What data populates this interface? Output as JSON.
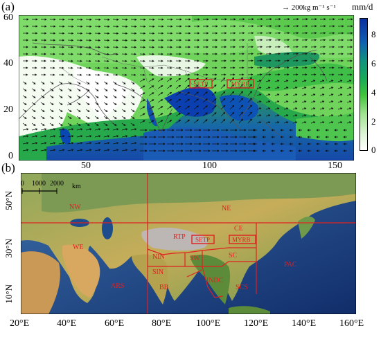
{
  "panel_a": {
    "label": "(a)",
    "vector_ref_label": "→ 200kg m⁻¹ s⁻¹",
    "unit_label": "mm/d",
    "y_ticks": [
      "60",
      "40",
      "20",
      "0"
    ],
    "x_ticks": [
      "50",
      "100",
      "150"
    ],
    "colorbar_ticks": [
      "8",
      "6",
      "4",
      "2",
      "0"
    ],
    "colorbar_colors": [
      "#ffffff",
      "#dff5d8",
      "#9fe28f",
      "#3fc43a",
      "#17a85a",
      "#11927f",
      "#0f5fb0",
      "#0a2fa0"
    ],
    "boxes": [
      "SETP",
      "MYRB"
    ],
    "vector_color": "#000000",
    "box_color": "#e02020"
  },
  "panel_b": {
    "label": "(b)",
    "scale_bar": {
      "labels": [
        "0",
        "1000",
        "2000"
      ],
      "unit": "km"
    },
    "y_ticks": [
      "50°N",
      "30°N",
      "10°N"
    ],
    "x_ticks": [
      "20°E",
      "40°E",
      "60°E",
      "80°E",
      "100°E",
      "120°E",
      "140°E",
      "160°E"
    ],
    "region_color": "#e02020",
    "regions": [
      "NW",
      "NE",
      "WE",
      "RTP",
      "SETP",
      "MYRB",
      "CE",
      "NIN",
      "SIN",
      "SW",
      "SC",
      "ARS",
      "BB",
      "INDC",
      "SCS",
      "PAC"
    ]
  }
}
